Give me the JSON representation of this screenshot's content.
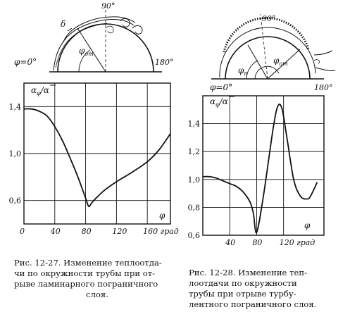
{
  "figures": {
    "left": {
      "sketch": {
        "phi": "φ=0°",
        "deg90": "90°",
        "deg180": "180°",
        "delta": "δ",
        "phi_ot": "φ"
      },
      "ylabel": "α",
      "ylabel_sub": "φ",
      "ylabel_den": "/α",
      "xlabel": "φ",
      "yticks": [
        "1,4",
        "1,0",
        "0,6"
      ],
      "xticks": [
        "0",
        "40",
        "80",
        "120",
        "160 град"
      ],
      "caption": [
        "Рис. 12-27. Изменение теплоотда-",
        "чи по окружности трубы при от-",
        "рыве ламинарного пограничного",
        "слоя."
      ]
    },
    "right": {
      "sketch": {
        "phi": "φ=0°",
        "deg90": "90°",
        "deg180": "180°",
        "phi_n": "φ",
        "phi_ot": "φ"
      },
      "ylabel": "α",
      "ylabel_sub": "φ",
      "ylabel_den": "/α",
      "xlabel": "φ",
      "yticks": [
        "1,4",
        "1,2",
        "1,0",
        "0,8",
        "0,6"
      ],
      "xticks": [
        "40",
        "80",
        "120 град"
      ],
      "caption": [
        "Рис. 12-28. Изменение теп-",
        "лоотдачи по окружности",
        "трубы при отрыве турбу-",
        "лентного пограничного слоя."
      ]
    }
  },
  "chart_data": [
    {
      "type": "line",
      "xlabel": "φ",
      "ylabel": "αφ/ᾱ",
      "xlim": [
        0,
        190
      ],
      "ylim": [
        0.4,
        1.6
      ],
      "grid": true,
      "x": [
        0,
        10,
        20,
        30,
        40,
        50,
        60,
        70,
        80,
        84,
        88,
        95,
        105,
        120,
        140,
        160,
        175,
        190
      ],
      "y": [
        1.38,
        1.38,
        1.36,
        1.32,
        1.23,
        1.11,
        0.96,
        0.8,
        0.62,
        0.55,
        0.58,
        0.63,
        0.69,
        0.76,
        0.84,
        0.93,
        1.03,
        1.17
      ]
    },
    {
      "type": "line",
      "xlabel": "φ",
      "ylabel": "αφ/ᾱ",
      "xlim": [
        0,
        180
      ],
      "ylim": [
        0.6,
        1.6
      ],
      "grid": true,
      "x": [
        0,
        10,
        20,
        30,
        40,
        50,
        60,
        70,
        75,
        80,
        90,
        105,
        112,
        118,
        125,
        135,
        145,
        155,
        160,
        170
      ],
      "y": [
        1.02,
        1.02,
        1.01,
        0.99,
        0.97,
        0.95,
        0.91,
        0.84,
        0.76,
        0.62,
        0.88,
        1.38,
        1.53,
        1.5,
        1.3,
        1.0,
        0.88,
        0.86,
        0.88,
        0.98
      ]
    }
  ]
}
